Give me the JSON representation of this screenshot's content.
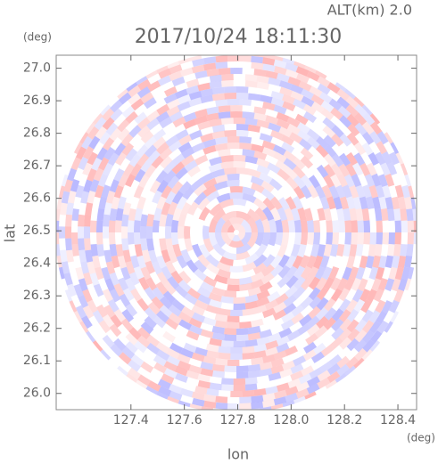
{
  "chart_data": {
    "type": "radar",
    "title": "2017/10/24 18:11:30",
    "subtitle": "ALT(km) 2.0",
    "y_unit": "(deg)",
    "x_unit": "(deg)",
    "ylabel": "lat",
    "xlabel": "lon",
    "xlim": [
      127.12,
      128.47
    ],
    "ylim": [
      25.95,
      27.04
    ],
    "xticks": [
      127.4,
      127.6,
      127.8,
      {
        "value": 128,
        "label": "128.0"
      },
      128.2,
      128.4
    ],
    "yticks": [
      {
        "value": 26,
        "label": "26.0"
      },
      26.1,
      26.2,
      26.3,
      26.4,
      26.5,
      26.6,
      26.7,
      26.8,
      26.9,
      {
        "value": 27,
        "label": "27.0"
      }
    ]
  }
}
